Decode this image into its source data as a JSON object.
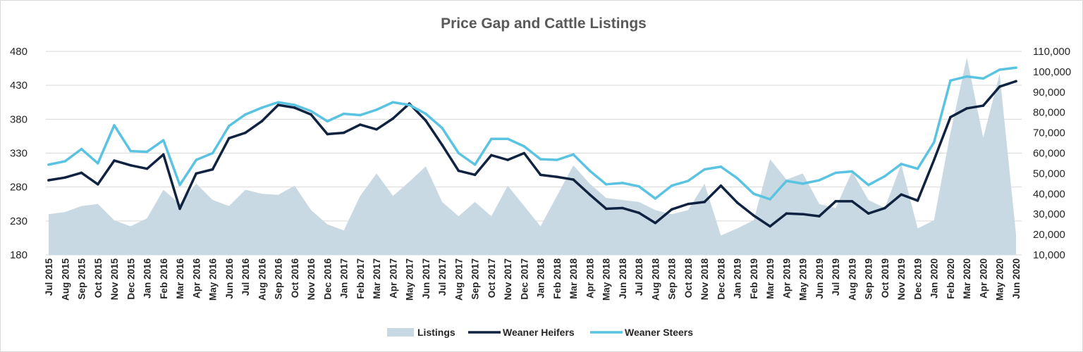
{
  "chart_data": {
    "type": "line",
    "title": "Price Gap and Cattle Listings",
    "categories": [
      "Jul 2015",
      "Aug 2015",
      "Sep 2015",
      "Oct 2015",
      "Nov 2015",
      "Dec 2015",
      "Jan 2016",
      "Feb 2016",
      "Mar 2016",
      "Apr 2016",
      "May 2016",
      "Jun 2016",
      "Jul 2016",
      "Aug 2016",
      "Sep 2016",
      "Oct 2016",
      "Nov 2016",
      "Dec 2016",
      "Jan 2017",
      "Feb 2017",
      "Mar 2017",
      "Apr 2017",
      "May 2017",
      "Jun 2017",
      "Jul 2017",
      "Aug 2017",
      "Sep 2017",
      "Oct 2017",
      "Nov 2017",
      "Dec 2017",
      "Jan 2018",
      "Feb 2018",
      "Mar 2018",
      "Apr 2018",
      "May 2018",
      "Jun 2018",
      "Jul 2018",
      "Aug 2018",
      "Sep 2018",
      "Oct 2018",
      "Nov 2018",
      "Dec 2018",
      "Jan 2019",
      "Feb 2019",
      "Mar 2019",
      "Apr 2019",
      "May 2019",
      "Jun 2019",
      "Jul 2019",
      "Aug 2019",
      "Sep 2019",
      "Oct 2019",
      "Nov 2019",
      "Dec 2019",
      "Jan 2020",
      "Feb 2020",
      "Mar 2020",
      "Apr 2020",
      "May 2020",
      "Jun 2020"
    ],
    "y_left": {
      "ticks": [
        "480",
        "430",
        "380",
        "330",
        "280",
        "230",
        "180"
      ],
      "ylim": [
        180,
        480
      ]
    },
    "y_right": {
      "ticks": [
        "110,000",
        "100,000",
        "90,000",
        "80,000",
        "70,000",
        "60,000",
        "50,000",
        "40,000",
        "30,000",
        "20,000",
        "10,000"
      ],
      "ylim": [
        10000,
        110000
      ]
    },
    "grid": true,
    "legend_position": "bottom",
    "series": [
      {
        "name": "Listings",
        "kind": "area",
        "axis": "right",
        "color": "#c9d9e3",
        "values": [
          30000,
          31000,
          34000,
          35000,
          27000,
          24000,
          28000,
          42000,
          35000,
          45000,
          37000,
          34000,
          42000,
          40000,
          39500,
          44000,
          32000,
          25000,
          22000,
          39000,
          50000,
          39000,
          46000,
          53500,
          36000,
          29000,
          36000,
          29000,
          44000,
          34000,
          24000,
          39000,
          54000,
          45000,
          38000,
          37000,
          36000,
          32000,
          30000,
          32000,
          45000,
          19500,
          23000,
          27000,
          57000,
          47000,
          50000,
          35000,
          33000,
          51000,
          37000,
          33000,
          54500,
          23000,
          27000,
          70000,
          107000,
          67500,
          99000,
          20000
        ]
      },
      {
        "name": "Weaner Heifers",
        "kind": "line",
        "axis": "left",
        "color": "#0f2340",
        "values": [
          290,
          294,
          301,
          284,
          319,
          312,
          307,
          328,
          248,
          300,
          306,
          352,
          360,
          377,
          401,
          397,
          387,
          358,
          360,
          372,
          365,
          381,
          403,
          378,
          342,
          304,
          298,
          327,
          320,
          330,
          298,
          295,
          291,
          269,
          248,
          249,
          242,
          227,
          247,
          255,
          258,
          282,
          257,
          238,
          222,
          241,
          240,
          237,
          259,
          259,
          241,
          249,
          269,
          260,
          320,
          383,
          396,
          400,
          428,
          436
        ]
      },
      {
        "name": "Weaner Steers",
        "kind": "line",
        "axis": "left",
        "color": "#5bc3e2",
        "values": [
          313,
          318,
          336,
          315,
          371,
          333,
          332,
          349,
          283,
          320,
          330,
          370,
          387,
          397,
          405,
          401,
          392,
          377,
          388,
          386,
          394,
          405,
          401,
          388,
          367,
          330,
          313,
          351,
          351,
          340,
          321,
          320,
          328,
          304,
          284,
          286,
          281,
          263,
          282,
          289,
          306,
          310,
          293,
          270,
          262,
          289,
          285,
          290,
          301,
          303,
          283,
          296,
          314,
          307,
          346,
          437,
          443,
          440,
          453,
          456
        ]
      }
    ]
  }
}
